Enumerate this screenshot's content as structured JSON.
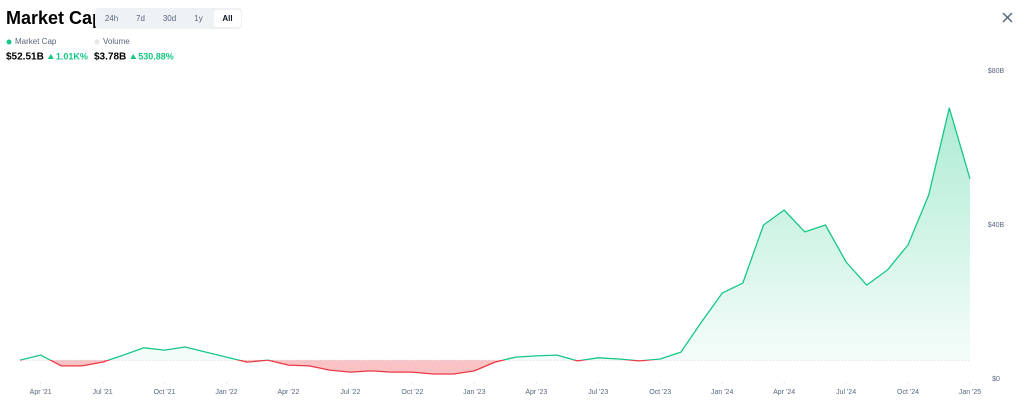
{
  "header": {
    "title": "Market Cap",
    "tabs": [
      "24h",
      "7d",
      "30d",
      "1y",
      "All"
    ],
    "active_tab": 4
  },
  "stats": [
    {
      "name": "Market Cap",
      "color": "#16c784",
      "value": "$52.51B",
      "change": "1.01K%"
    },
    {
      "name": "Volume",
      "color": "#e6e8ec",
      "value": "$3.78B",
      "change": "530.88%"
    }
  ],
  "chart_data": {
    "type": "line",
    "x": [
      "2021-03",
      "2021-04",
      "2021-05",
      "2021-06",
      "2021-07",
      "2021-08",
      "2021-09",
      "2021-10",
      "2021-11",
      "2021-12",
      "2022-01",
      "2022-02",
      "2022-03",
      "2022-04",
      "2022-05",
      "2022-06",
      "2022-07",
      "2022-08",
      "2022-09",
      "2022-10",
      "2022-11",
      "2022-12",
      "2023-01",
      "2023-02",
      "2023-03",
      "2023-04",
      "2023-05",
      "2023-06",
      "2023-07",
      "2023-08",
      "2023-09",
      "2023-10",
      "2023-11",
      "2023-12",
      "2024-01",
      "2024-02",
      "2024-03",
      "2024-04",
      "2024-05",
      "2024-06",
      "2024-07",
      "2024-08",
      "2024-09",
      "2024-10",
      "2024-11",
      "2024-12",
      "2025-01"
    ],
    "series": [
      {
        "name": "Market Cap",
        "color": "#16c784",
        "below_color": "#ea3943",
        "values": [
          4.9,
          6.2,
          3.4,
          3.4,
          4.4,
          6.2,
          8.1,
          7.5,
          8.3,
          7.0,
          5.7,
          4.4,
          4.9,
          3.6,
          3.4,
          2.3,
          1.8,
          2.1,
          1.8,
          1.8,
          1.3,
          1.3,
          2.1,
          4.4,
          5.7,
          6.0,
          6.2,
          4.7,
          5.5,
          5.2,
          4.7,
          5.2,
          7.0,
          14.8,
          22.3,
          24.9,
          40.0,
          43.9,
          38.2,
          40.0,
          30.4,
          24.4,
          28.3,
          34.8,
          47.8,
          70.4,
          52.0
        ]
      }
    ],
    "xlim": [
      "2021-03",
      "2025-01"
    ],
    "xticks": [
      {
        "value": "2021-04",
        "label": "Apr '21"
      },
      {
        "value": "2021-07",
        "label": "Jul '21"
      },
      {
        "value": "2021-10",
        "label": "Oct '21"
      },
      {
        "value": "2022-01",
        "label": "Jan '22"
      },
      {
        "value": "2022-04",
        "label": "Apr '22"
      },
      {
        "value": "2022-07",
        "label": "Jul '22"
      },
      {
        "value": "2022-10",
        "label": "Oct '22"
      },
      {
        "value": "2023-01",
        "label": "Jan '23"
      },
      {
        "value": "2023-04",
        "label": "Apr '23"
      },
      {
        "value": "2023-07",
        "label": "Jul '23"
      },
      {
        "value": "2023-10",
        "label": "Oct '23"
      },
      {
        "value": "2024-01",
        "label": "Jan '24"
      },
      {
        "value": "2024-04",
        "label": "Apr '24"
      },
      {
        "value": "2024-07",
        "label": "Jul '24"
      },
      {
        "value": "2024-10",
        "label": "Oct '24"
      },
      {
        "value": "2025-01",
        "label": "Jan '25"
      }
    ],
    "ylim": [
      0,
      80
    ],
    "yticks": [
      {
        "value": 0,
        "label": "$0"
      },
      {
        "value": 40,
        "label": "$40B"
      },
      {
        "value": 80,
        "label": "$80B"
      }
    ],
    "grid": false
  }
}
